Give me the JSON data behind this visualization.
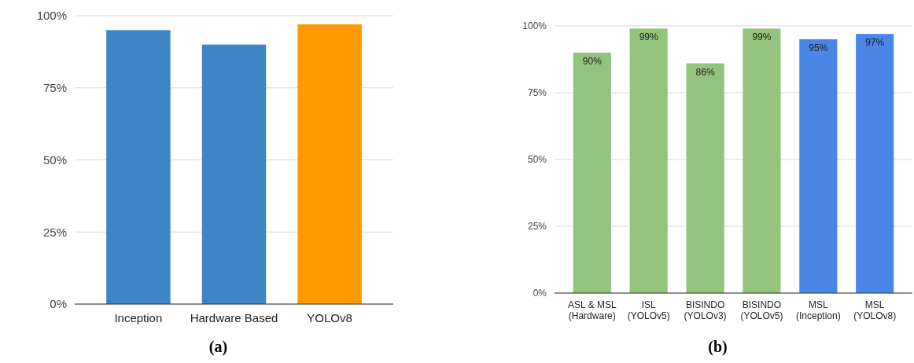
{
  "chart_data": [
    {
      "type": "bar",
      "title": "(a)",
      "categories": [
        "Inception",
        "Hardware Based",
        "YOLOv8"
      ],
      "values": [
        95,
        90,
        97
      ],
      "colors": [
        "#3d85c6",
        "#3d85c6",
        "#ff9900"
      ],
      "ylim": [
        0,
        100
      ],
      "yticks": [
        {
          "value": 0,
          "label": "0%"
        },
        {
          "value": 25,
          "label": "25%"
        },
        {
          "value": 50,
          "label": "50%"
        },
        {
          "value": 75,
          "label": "75%"
        },
        {
          "value": 100,
          "label": "100%"
        }
      ],
      "grid": "y"
    },
    {
      "type": "bar",
      "title": "(b)",
      "categories": [
        "ASL & MSL\n(Hardware)",
        "ISL\n(YOLOv5)",
        "BISINDO\n(YOLOv3)",
        "BISINDO\n(YOLOv5)",
        "MSL\n(Inception)",
        "MSL\n(YOLOv8)"
      ],
      "values": [
        90,
        99,
        86,
        99,
        95,
        97
      ],
      "value_labels": [
        "90%",
        "99%",
        "86%",
        "99%",
        "95%",
        "97%"
      ],
      "colors": [
        "#93c47d",
        "#93c47d",
        "#93c47d",
        "#93c47d",
        "#4a86e8",
        "#4a86e8"
      ],
      "ylim": [
        0,
        100
      ],
      "yticks": [
        {
          "value": 0,
          "label": "0%"
        },
        {
          "value": 25,
          "label": "25%"
        },
        {
          "value": 50,
          "label": "50%"
        },
        {
          "value": 75,
          "label": "75%"
        },
        {
          "value": 100,
          "label": "100%"
        }
      ],
      "grid": "y"
    }
  ]
}
